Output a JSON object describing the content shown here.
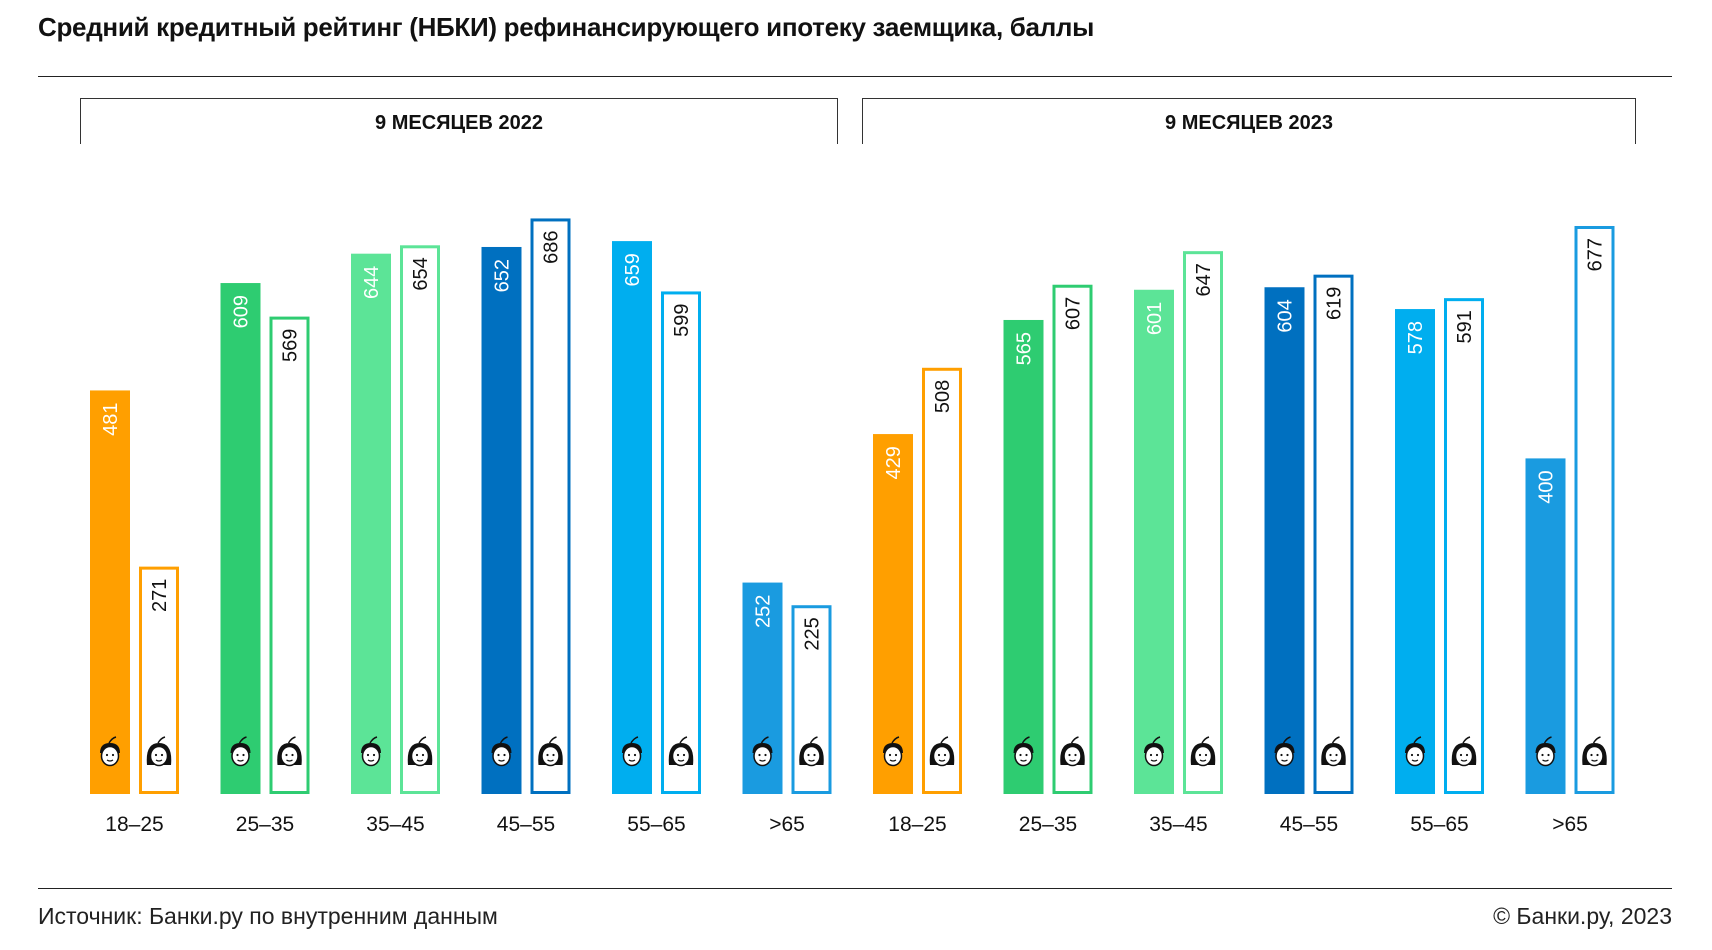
{
  "title": "Средний кредитный рейтинг (НБКИ) рефинансирующего ипотеку заемщика, баллы",
  "source": "Источник: Банки.ру по внутренним данным",
  "copyright": "© Банки.ру, 2023",
  "colors": {
    "18–25": "#FF9F00",
    "25–35": "#2ECC71",
    "35–45": "#5CE497",
    "45–55": "#0070C0",
    "55–65": "#00AEEF",
    ">65": "#1A9BE0"
  },
  "chart_data": [
    {
      "type": "bar",
      "panel": "9 МЕСЯЦЕВ 2022",
      "categories": [
        "18–25",
        "25–35",
        "35–45",
        "45–55",
        "55–65",
        ">65"
      ],
      "series": [
        {
          "kind": "male",
          "icon": "man-icon",
          "values": [
            481,
            609,
            644,
            652,
            659,
            252
          ]
        },
        {
          "kind": "female",
          "icon": "woman-icon",
          "values": [
            271,
            569,
            654,
            686,
            599,
            225
          ]
        }
      ]
    },
    {
      "type": "bar",
      "panel": "9 МЕСЯЦЕВ 2023",
      "categories": [
        "18–25",
        "25–35",
        "35–45",
        "45–55",
        "55–65",
        ">65"
      ],
      "series": [
        {
          "kind": "male",
          "icon": "man-icon",
          "values": [
            429,
            565,
            601,
            604,
            578,
            400
          ]
        },
        {
          "kind": "female",
          "icon": "woman-icon",
          "values": [
            508,
            607,
            647,
            619,
            591,
            677
          ]
        }
      ]
    }
  ]
}
